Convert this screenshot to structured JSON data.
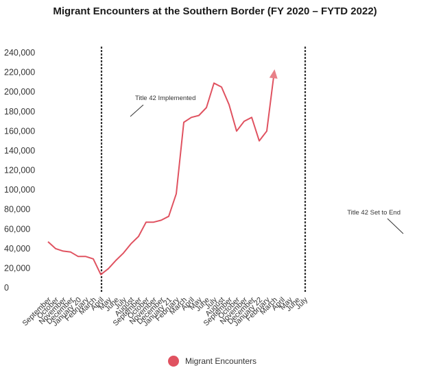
{
  "title": "Migrant Encounters at the Southern Border (FY 2020 – FYTD 2022)",
  "chart_data": {
    "type": "line",
    "title": "Migrant Encounters at the Southern Border (FY 2020 – FYTD 2022)",
    "xlabel": "",
    "ylabel": "",
    "ylim": [
      0,
      240000
    ],
    "y_ticks": [
      "0",
      "20,000",
      "40,000",
      "60,000",
      "80,000",
      "100,000",
      "120,000",
      "140,000",
      "160,000",
      "180,000",
      "200,000",
      "220,000",
      "240,000"
    ],
    "y_tick_values": [
      0,
      20000,
      40000,
      60000,
      80000,
      100000,
      120000,
      140000,
      160000,
      180000,
      200000,
      220000,
      240000
    ],
    "grid": false,
    "legend_position": "bottom",
    "x_labels": [
      "September",
      "October",
      "November",
      "December",
      "January 20",
      "February",
      "March",
      "April",
      "May",
      "June",
      "July",
      "August",
      "September",
      "October",
      "November",
      "December",
      "January 21",
      "February",
      "March",
      "April",
      "May",
      "June",
      "July",
      "August",
      "September",
      "October",
      "November",
      "December",
      "January 22",
      "February",
      "March",
      "April",
      "May",
      "June",
      "July"
    ],
    "series": [
      {
        "name": "Migrant Encounters",
        "color": "#e05260",
        "values": [
          47000,
          40000,
          37500,
          36500,
          32000,
          32000,
          29500,
          13500,
          19500,
          28000,
          35500,
          45000,
          52500,
          67000,
          67000,
          69000,
          73000,
          96000,
          169000,
          174000,
          176000,
          184000,
          209000,
          205000,
          187000,
          160000,
          170000,
          174000,
          150000,
          160000,
          221000
        ]
      }
    ],
    "annotations": [
      {
        "text": "Title 42 Implemented",
        "at_index": 7
      },
      {
        "text": "Title 42 Set to End",
        "at_index": 34
      }
    ],
    "marker_color": "#333333",
    "arrow_color": "#e88088"
  }
}
